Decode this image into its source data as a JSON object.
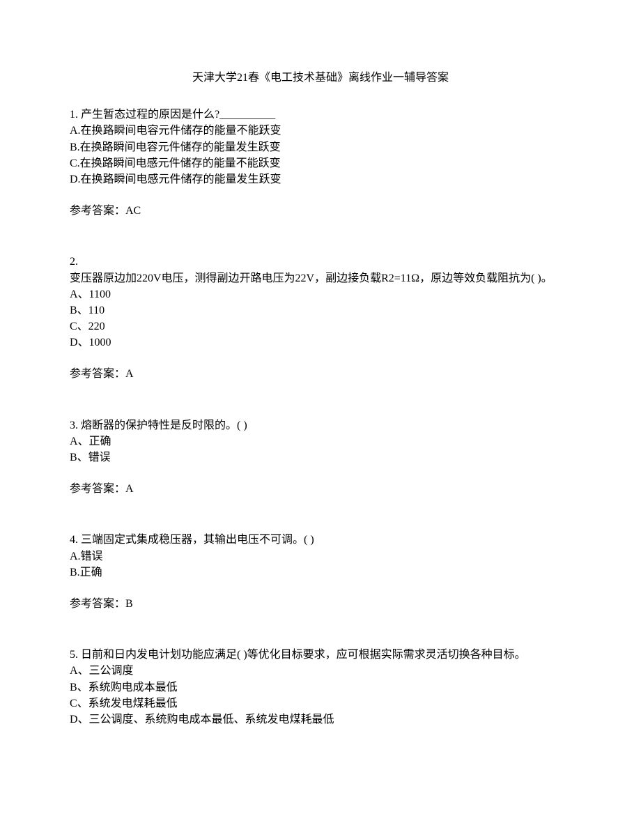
{
  "document": {
    "title": "天津大学21春《电工技术基础》离线作业一辅导答案",
    "questions": [
      {
        "number": "1.",
        "text": "产生暂态过程的原因是什么?__________",
        "options": [
          "A.在换路瞬间电容元件储存的能量不能跃变",
          "B.在换路瞬间电容元件储存的能量发生跃变",
          "C.在换路瞬间电感元件储存的能量不能跃变",
          "D.在换路瞬间电感元件储存的能量发生跃变"
        ],
        "answer_label": "参考答案：AC"
      },
      {
        "number": "2.",
        "text": "变压器原边加220V电压，测得副边开路电压为22V，副边接负载R2=11Ω，原边等效负载阻抗为(  )。",
        "options": [
          "A、1100",
          "B、110",
          "C、220",
          "D、1000"
        ],
        "answer_label": "参考答案：A"
      },
      {
        "number": "3.",
        "text": "熔断器的保护特性是反时限的。(  )",
        "options": [
          "A、正确",
          "B、错误"
        ],
        "answer_label": "参考答案：A"
      },
      {
        "number": "4.",
        "text": "三端固定式集成稳压器，其输出电压不可调。(  )",
        "options": [
          "A.错误",
          "B.正确"
        ],
        "answer_label": "参考答案：B"
      },
      {
        "number": "5.",
        "text": "日前和日内发电计划功能应满足(  )等优化目标要求，应可根据实际需求灵活切换各种目标。",
        "options": [
          "A、三公调度",
          "B、系统购电成本最低",
          "C、系统发电煤耗最低",
          "D、三公调度、系统购电成本最低、系统发电煤耗最低"
        ],
        "answer_label": ""
      }
    ]
  }
}
